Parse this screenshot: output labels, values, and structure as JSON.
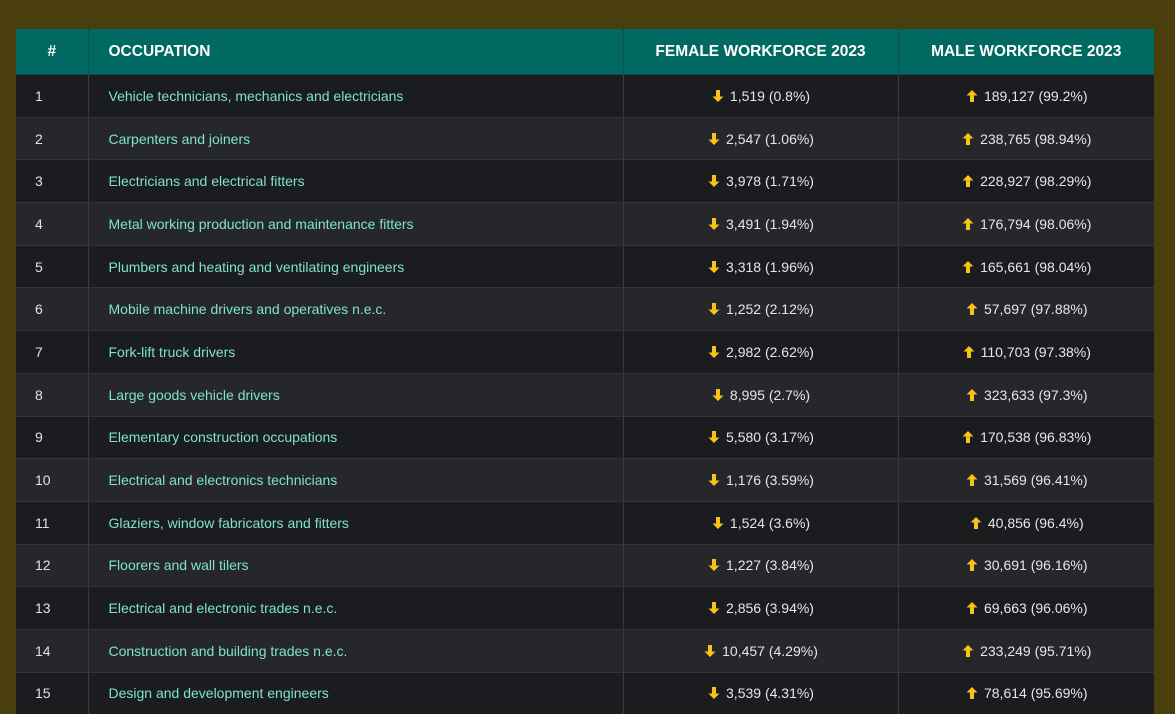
{
  "colors": {
    "page_bg": "#4a3e0c",
    "header_bg": "#006a62",
    "link": "#7fe3cf",
    "arrow": "#f7c21a"
  },
  "table": {
    "headers": {
      "rank": "#",
      "occupation": "OCCUPATION",
      "female": "FEMALE WORKFORCE 2023",
      "male": "MALE WORKFORCE 2023"
    },
    "rows": [
      {
        "rank": "1",
        "occupation": "Vehicle technicians, mechanics and electricians",
        "female": "1,519 (0.8%)",
        "male": "189,127 (99.2%)",
        "female_icon": "arrow-down-icon",
        "male_icon": "arrow-up-icon"
      },
      {
        "rank": "2",
        "occupation": "Carpenters and joiners",
        "female": "2,547 (1.06%)",
        "male": "238,765 (98.94%)",
        "female_icon": "arrow-down-icon",
        "male_icon": "arrow-up-icon"
      },
      {
        "rank": "3",
        "occupation": "Electricians and electrical fitters",
        "female": "3,978 (1.71%)",
        "male": "228,927 (98.29%)",
        "female_icon": "arrow-down-icon",
        "male_icon": "arrow-up-icon"
      },
      {
        "rank": "4",
        "occupation": "Metal working production and maintenance fitters",
        "female": "3,491 (1.94%)",
        "male": "176,794 (98.06%)",
        "female_icon": "arrow-down-icon",
        "male_icon": "arrow-up-icon"
      },
      {
        "rank": "5",
        "occupation": "Plumbers and heating and ventilating engineers",
        "female": "3,318 (1.96%)",
        "male": "165,661 (98.04%)",
        "female_icon": "arrow-down-icon",
        "male_icon": "arrow-up-icon"
      },
      {
        "rank": "6",
        "occupation": "Mobile machine drivers and operatives n.e.c.",
        "female": "1,252 (2.12%)",
        "male": "57,697 (97.88%)",
        "female_icon": "arrow-down-icon",
        "male_icon": "arrow-up-icon"
      },
      {
        "rank": "7",
        "occupation": "Fork-lift truck drivers",
        "female": "2,982 (2.62%)",
        "male": "110,703 (97.38%)",
        "female_icon": "arrow-down-icon",
        "male_icon": "arrow-up-icon"
      },
      {
        "rank": "8",
        "occupation": "Large goods vehicle drivers",
        "female": "8,995 (2.7%)",
        "male": "323,633 (97.3%)",
        "female_icon": "arrow-down-icon",
        "male_icon": "arrow-up-icon"
      },
      {
        "rank": "9",
        "occupation": "Elementary construction occupations",
        "female": "5,580 (3.17%)",
        "male": "170,538 (96.83%)",
        "female_icon": "arrow-down-icon",
        "male_icon": "arrow-up-icon"
      },
      {
        "rank": "10",
        "occupation": "Electrical and electronics technicians",
        "female": "1,176 (3.59%)",
        "male": "31,569 (96.41%)",
        "female_icon": "arrow-down-icon",
        "male_icon": "arrow-up-icon"
      },
      {
        "rank": "11",
        "occupation": "Glaziers, window fabricators and fitters",
        "female": "1,524 (3.6%)",
        "male": "40,856 (96.4%)",
        "female_icon": "arrow-down-icon",
        "male_icon": "arrow-up-icon"
      },
      {
        "rank": "12",
        "occupation": "Floorers and wall tilers",
        "female": "1,227 (3.84%)",
        "male": "30,691 (96.16%)",
        "female_icon": "arrow-down-icon",
        "male_icon": "arrow-up-icon"
      },
      {
        "rank": "13",
        "occupation": "Electrical and electronic trades n.e.c.",
        "female": "2,856 (3.94%)",
        "male": "69,663 (96.06%)",
        "female_icon": "arrow-down-icon",
        "male_icon": "arrow-up-icon"
      },
      {
        "rank": "14",
        "occupation": "Construction and building trades n.e.c.",
        "female": "10,457 (4.29%)",
        "male": "233,249 (95.71%)",
        "female_icon": "arrow-down-icon",
        "male_icon": "arrow-up-icon"
      },
      {
        "rank": "15",
        "occupation": "Design and development engineers",
        "female": "3,539 (4.31%)",
        "male": "78,614 (95.69%)",
        "female_icon": "arrow-down-icon",
        "male_icon": "arrow-up-icon"
      }
    ]
  }
}
